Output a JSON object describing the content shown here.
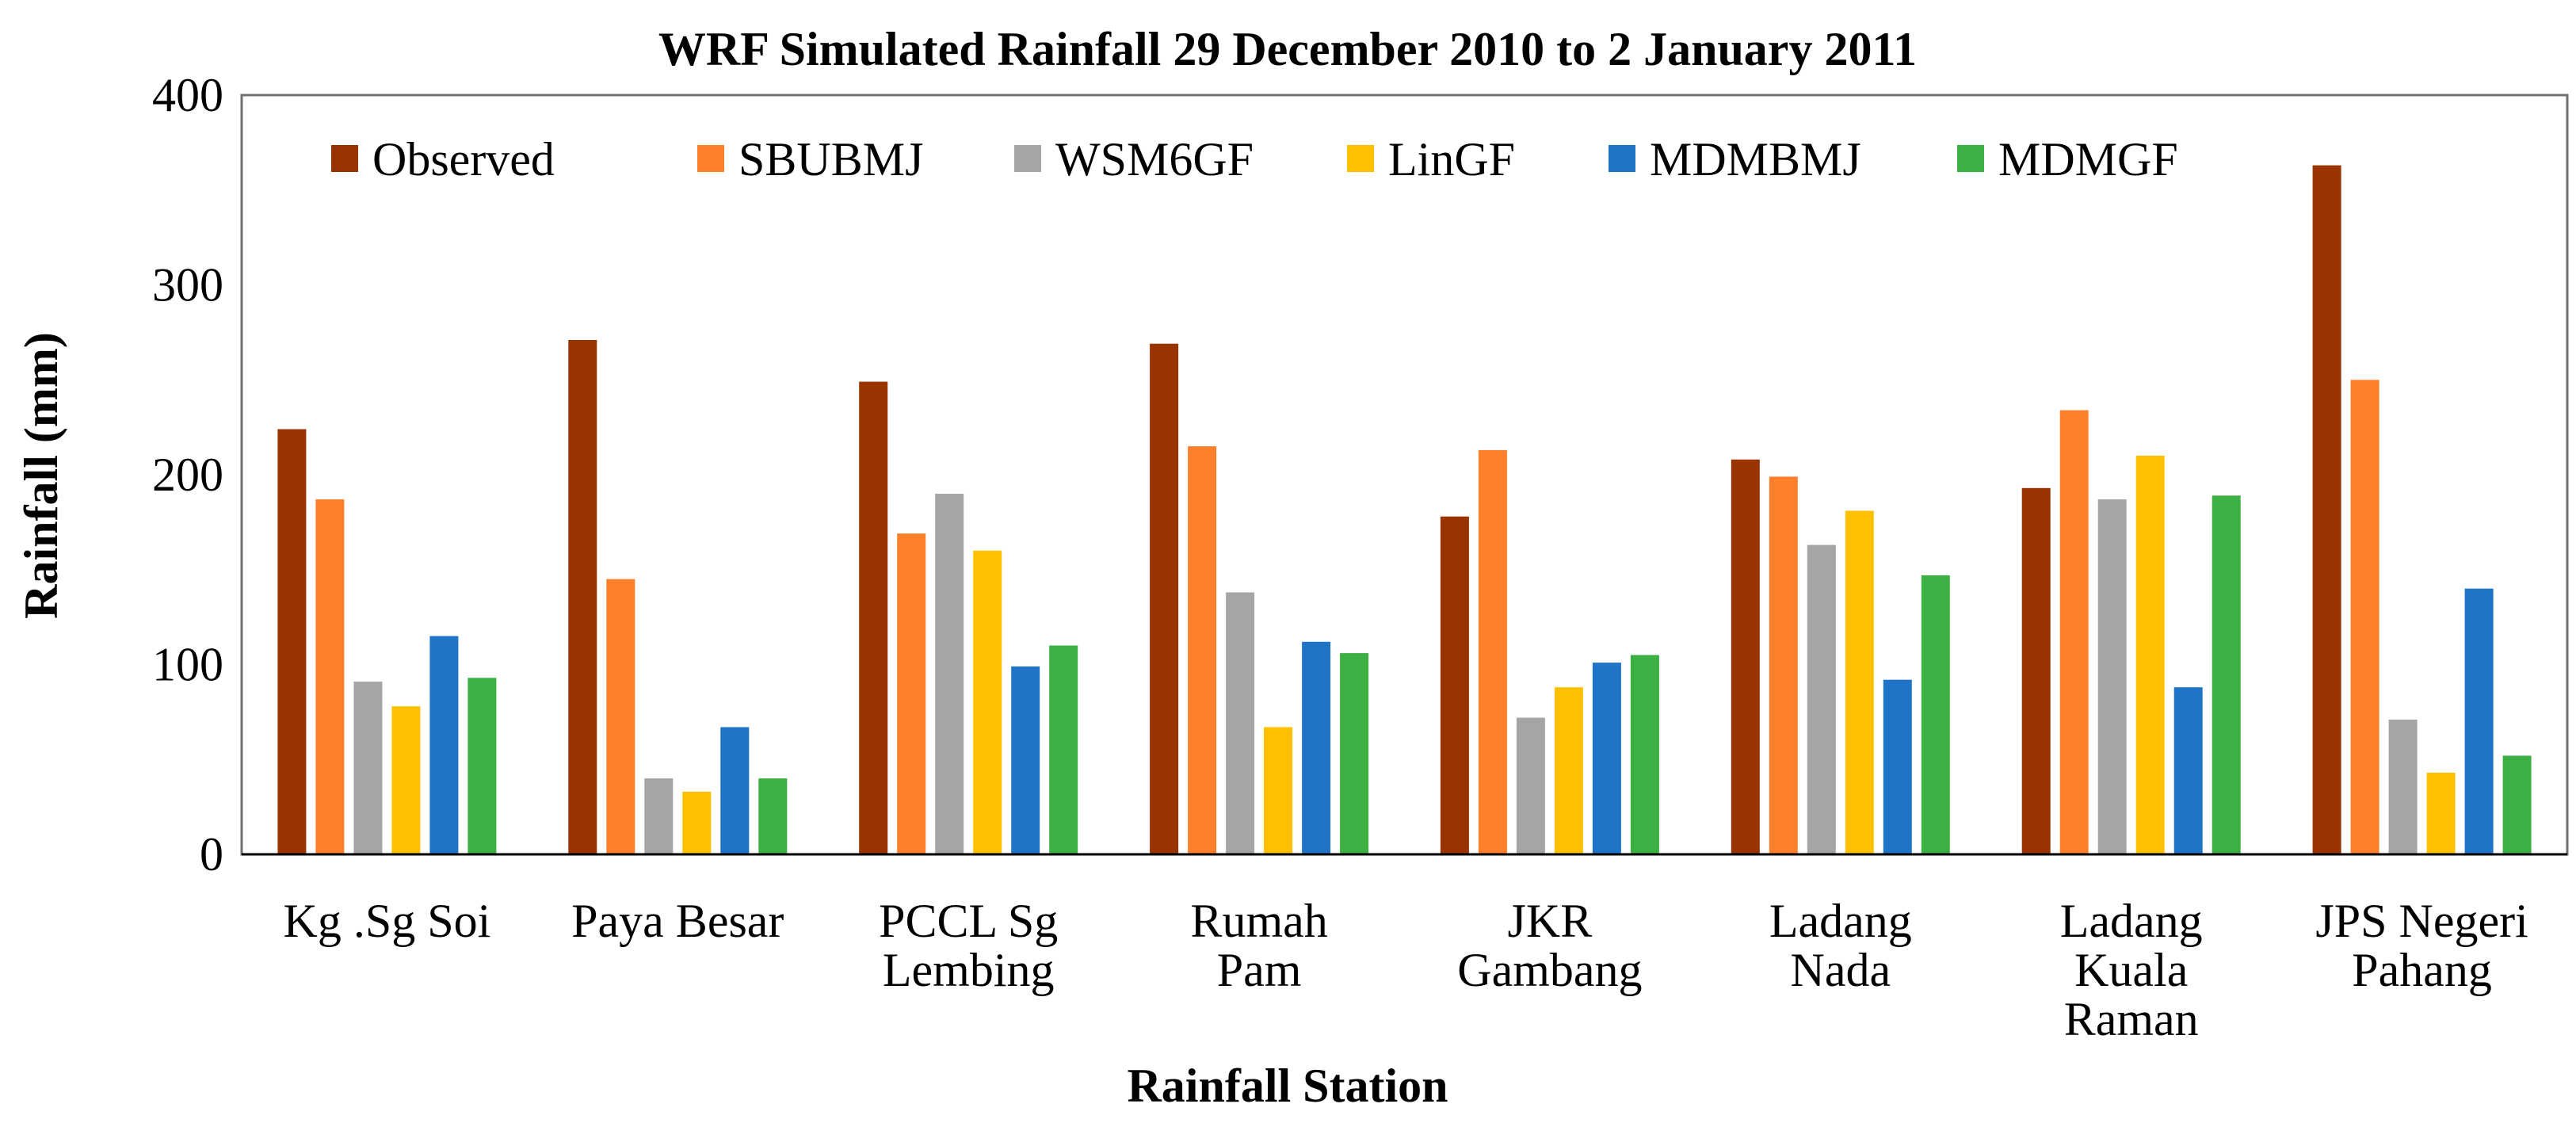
{
  "chart_data": {
    "type": "bar",
    "title": "WRF Simulated Rainfall 29 December 2010 to 2 January 2011",
    "xlabel": "Rainfall Station",
    "ylabel": "Rainfall (mm)",
    "ylim": [
      0,
      400
    ],
    "yticks": [
      0,
      100,
      200,
      300,
      400
    ],
    "grid": false,
    "legend_position": "top",
    "categories": [
      [
        "Kg .Sg Soi"
      ],
      [
        "Paya Besar"
      ],
      [
        "PCCL Sg",
        "Lembing"
      ],
      [
        "Rumah",
        "Pam"
      ],
      [
        "JKR",
        "Gambang"
      ],
      [
        "Ladang",
        "Nada"
      ],
      [
        "Ladang",
        "Kuala",
        "Raman"
      ],
      [
        "JPS Negeri",
        "Pahang"
      ]
    ],
    "series": [
      {
        "name": "Observed",
        "color": "#993300",
        "values": [
          224,
          271,
          249,
          269,
          178,
          208,
          193,
          363
        ]
      },
      {
        "name": "SBUBMJ",
        "color": "#FF7F2A",
        "values": [
          187,
          145,
          169,
          215,
          213,
          199,
          234,
          250
        ]
      },
      {
        "name": "WSM6GF",
        "color": "#A5A5A5",
        "values": [
          91,
          40,
          190,
          138,
          72,
          163,
          187,
          71
        ]
      },
      {
        "name": "LinGF",
        "color": "#FFC000",
        "values": [
          78,
          33,
          160,
          67,
          88,
          181,
          210,
          43
        ]
      },
      {
        "name": "MDMBMJ",
        "color": "#1F74C8",
        "values": [
          115,
          67,
          99,
          112,
          101,
          92,
          88,
          140
        ]
      },
      {
        "name": "MDMGF",
        "color": "#3CB043",
        "values": [
          93,
          40,
          110,
          106,
          105,
          147,
          189,
          52
        ]
      }
    ]
  }
}
